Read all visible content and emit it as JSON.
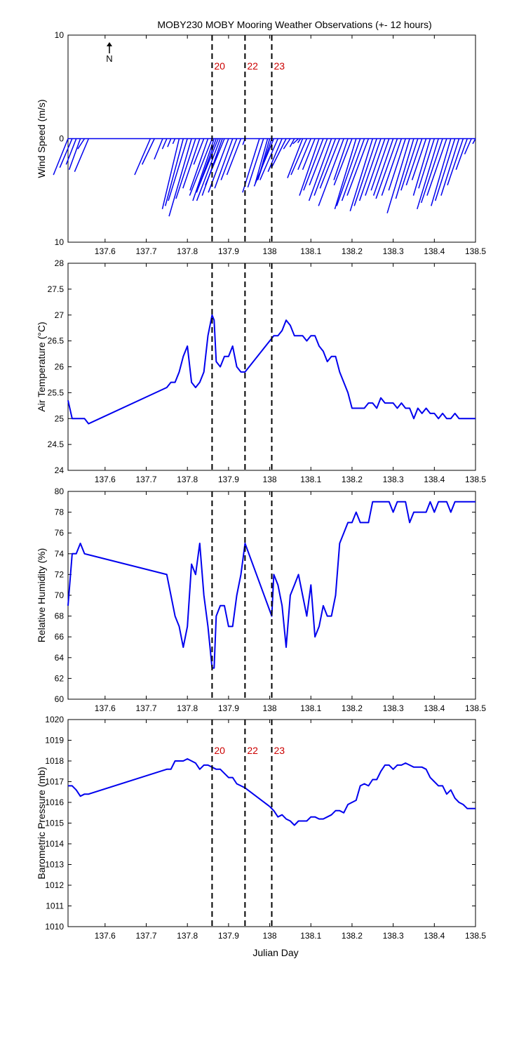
{
  "title": "MOBY230 MOBY Mooring Weather Observations (+- 12 hours)",
  "north_label": "N",
  "x_axis": {
    "label": "Julian Day",
    "range": [
      137.51,
      138.5
    ],
    "ticks": [
      137.6,
      137.7,
      137.8,
      137.9,
      138,
      138.1,
      138.2,
      138.3,
      138.4,
      138.5
    ],
    "tick_labels": [
      "137.6",
      "137.7",
      "137.8",
      "137.9",
      "138",
      "138.1",
      "138.2",
      "138.3",
      "138.4",
      "138.5"
    ]
  },
  "event_markers": [
    {
      "x": 137.86,
      "label": "20"
    },
    {
      "x": 137.94,
      "label": "22"
    },
    {
      "x": 138.005,
      "label": "23"
    }
  ],
  "colors": {
    "series": "#0000ee",
    "markers": "#cc0000",
    "dashed": "#000000"
  },
  "chart_data": [
    {
      "type": "vector",
      "name": "wind",
      "ylabel": "Wind Speed (m/s)",
      "ylim": [
        -10,
        10
      ],
      "ytick_labels": [
        "10",
        "0",
        "10"
      ],
      "ytick_values": [
        10,
        0,
        -10
      ],
      "show_markers": true,
      "vectors": [
        [
          137.51,
          -3.5,
          -2.6
        ],
        [
          137.52,
          -2.8,
          -2.2
        ],
        [
          137.53,
          -2.5,
          -1.8
        ],
        [
          137.54,
          -3.0,
          -2.0
        ],
        [
          137.55,
          -1.0,
          -1.2
        ],
        [
          137.56,
          -3.2,
          -2.5
        ],
        [
          137.71,
          -3.5,
          -2.8
        ],
        [
          137.72,
          -2.5,
          -2.2
        ],
        [
          137.74,
          -2.0,
          -1.5
        ],
        [
          137.75,
          -1.0,
          -0.8
        ],
        [
          137.76,
          -0.8,
          -0.6
        ],
        [
          137.77,
          -0.5,
          -0.4
        ],
        [
          137.78,
          -6.8,
          -3.0
        ],
        [
          137.79,
          -6.5,
          -3.2
        ],
        [
          137.8,
          -6.0,
          -3.4
        ],
        [
          137.81,
          -7.5,
          -4.0
        ],
        [
          137.82,
          -5.8,
          -3.5
        ],
        [
          137.83,
          -4.8,
          -3.0
        ],
        [
          137.84,
          -2.5,
          -1.8
        ],
        [
          137.85,
          -5.0,
          -3.2
        ],
        [
          137.86,
          -5.5,
          -4.0
        ],
        [
          137.865,
          -6.0,
          -3.8
        ],
        [
          137.87,
          -5.2,
          -3.5
        ],
        [
          137.875,
          -4.8,
          -3.6
        ],
        [
          137.88,
          -6.0,
          -4.2
        ],
        [
          137.885,
          -5.5,
          -3.6
        ],
        [
          137.89,
          -4.5,
          -3.4
        ],
        [
          137.9,
          -5.2,
          -3.6
        ],
        [
          137.91,
          -4.8,
          -3.2
        ],
        [
          137.92,
          -4.0,
          -2.8
        ],
        [
          137.93,
          -3.5,
          -2.5
        ],
        [
          137.94,
          -0.6,
          -0.4
        ],
        [
          137.975,
          -5.2,
          -3.0
        ],
        [
          137.985,
          -4.7,
          -2.8
        ],
        [
          137.995,
          -4.3,
          -2.2
        ],
        [
          138.0,
          -3.8,
          -2.0
        ],
        [
          138.005,
          -4.0,
          -2.5
        ],
        [
          138.01,
          -4.6,
          -3.5
        ],
        [
          138.02,
          -4.0,
          -3.2
        ],
        [
          138.03,
          -3.2,
          -2.5
        ],
        [
          138.04,
          -2.8,
          -2.6
        ],
        [
          138.05,
          -1.0,
          -1.2
        ],
        [
          138.06,
          -0.8,
          -0.8
        ],
        [
          138.07,
          -0.5,
          -1.0
        ],
        [
          138.075,
          -0.4,
          -0.5
        ],
        [
          138.08,
          -3.8,
          -2.7
        ],
        [
          138.09,
          -3.5,
          -2.8
        ],
        [
          138.1,
          -3.0,
          -2.3
        ],
        [
          138.11,
          -3.0,
          -2.2
        ],
        [
          138.12,
          -5.5,
          -3.5
        ],
        [
          138.13,
          -5.0,
          -3.5
        ],
        [
          138.14,
          -4.5,
          -3.2
        ],
        [
          138.15,
          -6.0,
          -4.0
        ],
        [
          138.16,
          -5.5,
          -3.8
        ],
        [
          138.17,
          -4.8,
          -3.5
        ],
        [
          138.18,
          -6.5,
          -4.5
        ],
        [
          138.19,
          -4.0,
          -2.5
        ],
        [
          138.2,
          -4.5,
          -3.2
        ],
        [
          138.21,
          -6.8,
          -3.8
        ],
        [
          138.22,
          -6.5,
          -4.2
        ],
        [
          138.23,
          -6.0,
          -4.0
        ],
        [
          138.24,
          -5.5,
          -3.8
        ],
        [
          138.25,
          -7.0,
          -4.0
        ],
        [
          138.26,
          -6.5,
          -4.0
        ],
        [
          138.27,
          -6.0,
          -3.8
        ],
        [
          138.28,
          -5.5,
          -3.5
        ],
        [
          138.29,
          -5.0,
          -3.2
        ],
        [
          138.3,
          -5.5,
          -3.5
        ],
        [
          138.31,
          -5.8,
          -3.8
        ],
        [
          138.32,
          -5.5,
          -3.5
        ],
        [
          138.33,
          -5.0,
          -3.0
        ],
        [
          138.34,
          -7.2,
          -4.0
        ],
        [
          138.35,
          -5.8,
          -3.2
        ],
        [
          138.36,
          -5.0,
          -3.0
        ],
        [
          138.37,
          -4.5,
          -2.8
        ],
        [
          138.38,
          -4.0,
          -2.5
        ],
        [
          138.39,
          -5.5,
          -3.0
        ],
        [
          138.4,
          -4.8,
          -2.8
        ],
        [
          138.41,
          -6.8,
          -3.8
        ],
        [
          138.42,
          -6.2,
          -3.8
        ],
        [
          138.43,
          -5.5,
          -3.5
        ],
        [
          138.44,
          -6.5,
          -3.5
        ],
        [
          138.45,
          -6.0,
          -3.5
        ],
        [
          138.46,
          -5.5,
          -3.2
        ],
        [
          138.47,
          -4.5,
          -2.8
        ],
        [
          138.48,
          -3.0,
          -2.0
        ],
        [
          138.49,
          -1.5,
          -1.2
        ],
        [
          138.5,
          -0.5,
          -0.5
        ]
      ]
    },
    {
      "type": "line",
      "name": "air-temperature",
      "ylabel": "Air Temperature (°C)",
      "ylim": [
        24,
        28
      ],
      "ytick_labels": [
        "24",
        "24.5",
        "25",
        "25.5",
        "26",
        "26.5",
        "27",
        "27.5",
        "28"
      ],
      "ytick_values": [
        24,
        24.5,
        25,
        25.5,
        26,
        26.5,
        27,
        27.5,
        28
      ],
      "show_markers": false,
      "x": [
        137.51,
        137.52,
        137.53,
        137.54,
        137.55,
        137.56,
        137.75,
        137.76,
        137.77,
        137.78,
        137.79,
        137.8,
        137.81,
        137.82,
        137.83,
        137.84,
        137.85,
        137.86,
        137.865,
        137.87,
        137.88,
        137.89,
        137.9,
        137.91,
        137.92,
        137.93,
        137.94,
        138.0,
        138.01,
        138.02,
        138.03,
        138.04,
        138.05,
        138.06,
        138.07,
        138.08,
        138.09,
        138.1,
        138.11,
        138.12,
        138.13,
        138.14,
        138.15,
        138.16,
        138.17,
        138.18,
        138.19,
        138.2,
        138.21,
        138.22,
        138.23,
        138.24,
        138.25,
        138.26,
        138.27,
        138.28,
        138.29,
        138.3,
        138.31,
        138.32,
        138.33,
        138.34,
        138.35,
        138.36,
        138.37,
        138.38,
        138.39,
        138.4,
        138.41,
        138.42,
        138.43,
        138.44,
        138.45,
        138.46,
        138.47,
        138.48,
        138.49,
        138.5
      ],
      "y": [
        25.35,
        25.0,
        25.0,
        25.0,
        25.0,
        24.9,
        25.6,
        25.7,
        25.7,
        25.9,
        26.2,
        26.4,
        25.7,
        25.6,
        25.7,
        25.9,
        26.6,
        27.0,
        26.9,
        26.1,
        26.0,
        26.2,
        26.2,
        26.4,
        26.0,
        25.9,
        25.9,
        26.5,
        26.6,
        26.6,
        26.7,
        26.9,
        26.8,
        26.6,
        26.6,
        26.6,
        26.5,
        26.6,
        26.6,
        26.4,
        26.3,
        26.1,
        26.2,
        26.2,
        25.9,
        25.7,
        25.5,
        25.2,
        25.2,
        25.2,
        25.2,
        25.3,
        25.3,
        25.2,
        25.4,
        25.3,
        25.3,
        25.3,
        25.2,
        25.3,
        25.2,
        25.2,
        25.0,
        25.2,
        25.1,
        25.2,
        25.1,
        25.1,
        25.0,
        25.1,
        25.0,
        25.0,
        25.1,
        25.0,
        25.0,
        25.0,
        25.0,
        25.0
      ]
    },
    {
      "type": "line",
      "name": "relative-humidity",
      "ylabel": "Relative Humidity (%)",
      "ylim": [
        60,
        80
      ],
      "ytick_labels": [
        "60",
        "62",
        "64",
        "66",
        "68",
        "70",
        "72",
        "74",
        "76",
        "78",
        "80"
      ],
      "ytick_values": [
        60,
        62,
        64,
        66,
        68,
        70,
        72,
        74,
        76,
        78,
        80
      ],
      "show_markers": true,
      "x": [
        137.51,
        137.52,
        137.53,
        137.54,
        137.55,
        137.75,
        137.76,
        137.77,
        137.78,
        137.79,
        137.8,
        137.81,
        137.82,
        137.83,
        137.84,
        137.85,
        137.86,
        137.865,
        137.87,
        137.88,
        137.89,
        137.9,
        137.91,
        137.92,
        137.93,
        137.94,
        138.005,
        138.01,
        138.02,
        138.03,
        138.04,
        138.05,
        138.06,
        138.07,
        138.08,
        138.09,
        138.1,
        138.11,
        138.12,
        138.13,
        138.14,
        138.15,
        138.16,
        138.17,
        138.18,
        138.19,
        138.2,
        138.21,
        138.22,
        138.23,
        138.24,
        138.25,
        138.26,
        138.27,
        138.28,
        138.29,
        138.3,
        138.31,
        138.32,
        138.33,
        138.34,
        138.35,
        138.36,
        138.37,
        138.38,
        138.39,
        138.4,
        138.41,
        138.42,
        138.43,
        138.44,
        138.45,
        138.46,
        138.47,
        138.48,
        138.49,
        138.5
      ],
      "y": [
        69,
        74,
        74,
        75,
        74,
        72,
        70,
        68,
        67,
        65,
        67,
        73,
        72,
        75,
        70,
        67,
        63,
        63,
        68,
        69,
        69,
        67,
        67,
        70,
        72,
        75,
        68,
        72,
        71,
        69,
        65,
        70,
        71,
        72,
        70,
        68,
        71,
        66,
        67,
        69,
        68,
        68,
        70,
        75,
        76,
        77,
        77,
        78,
        77,
        77,
        77,
        79,
        79,
        79,
        79,
        79,
        78,
        79,
        79,
        79,
        77,
        78,
        78,
        78,
        78,
        79,
        78,
        79,
        79,
        79,
        78,
        79,
        79,
        79,
        79,
        79,
        79
      ]
    },
    {
      "type": "line",
      "name": "barometric-pressure",
      "ylabel": "Barometric Pressure (mb)",
      "ylim": [
        1010,
        1020
      ],
      "ytick_labels": [
        "1010",
        "1011",
        "1012",
        "1013",
        "1014",
        "1015",
        "1016",
        "1017",
        "1018",
        "1019",
        "1020"
      ],
      "ytick_values": [
        1010,
        1011,
        1012,
        1013,
        1014,
        1015,
        1016,
        1017,
        1018,
        1019,
        1020
      ],
      "show_markers": true,
      "x": [
        137.51,
        137.52,
        137.53,
        137.54,
        137.55,
        137.56,
        137.75,
        137.76,
        137.77,
        137.78,
        137.79,
        137.8,
        137.81,
        137.82,
        137.83,
        137.84,
        137.85,
        137.86,
        137.87,
        137.88,
        137.89,
        137.9,
        137.91,
        137.92,
        137.93,
        137.94,
        138.0,
        138.01,
        138.02,
        138.03,
        138.04,
        138.05,
        138.06,
        138.07,
        138.08,
        138.09,
        138.1,
        138.11,
        138.12,
        138.13,
        138.14,
        138.15,
        138.16,
        138.17,
        138.18,
        138.19,
        138.2,
        138.21,
        138.22,
        138.23,
        138.24,
        138.25,
        138.26,
        138.27,
        138.28,
        138.29,
        138.3,
        138.31,
        138.32,
        138.33,
        138.34,
        138.35,
        138.36,
        138.37,
        138.38,
        138.39,
        138.4,
        138.41,
        138.42,
        138.43,
        138.44,
        138.45,
        138.46,
        138.47,
        138.48,
        138.49,
        138.5
      ],
      "y": [
        1016.8,
        1016.8,
        1016.6,
        1016.3,
        1016.4,
        1016.4,
        1017.6,
        1017.6,
        1018.0,
        1018.0,
        1018.0,
        1018.1,
        1018.0,
        1017.9,
        1017.6,
        1017.8,
        1017.8,
        1017.7,
        1017.6,
        1017.6,
        1017.4,
        1017.2,
        1017.2,
        1016.9,
        1016.8,
        1016.7,
        1015.8,
        1015.6,
        1015.3,
        1015.4,
        1015.2,
        1015.1,
        1014.9,
        1015.1,
        1015.1,
        1015.1,
        1015.3,
        1015.3,
        1015.2,
        1015.2,
        1015.3,
        1015.4,
        1015.6,
        1015.6,
        1015.5,
        1015.9,
        1016.0,
        1016.1,
        1016.8,
        1016.9,
        1016.8,
        1017.1,
        1017.1,
        1017.5,
        1017.8,
        1017.8,
        1017.6,
        1017.8,
        1017.8,
        1017.9,
        1017.8,
        1017.7,
        1017.7,
        1017.7,
        1017.6,
        1017.2,
        1017.0,
        1016.8,
        1016.8,
        1016.4,
        1016.6,
        1016.2,
        1016.0,
        1015.9,
        1015.7,
        1015.7,
        1015.7
      ]
    }
  ]
}
